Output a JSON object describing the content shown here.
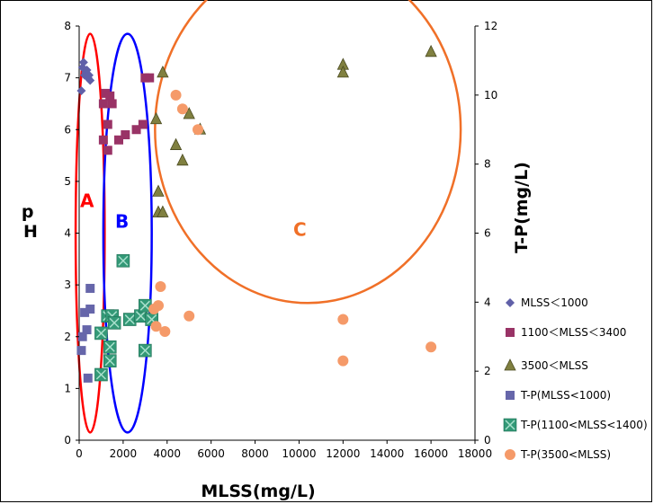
{
  "chart_data": {
    "type": "scatter",
    "xlabel": "MLSS(mg/L)",
    "ylabel": "pH",
    "y2label": "T-P(mg/L)",
    "xlim": [
      0,
      18000
    ],
    "ylim": [
      0,
      8
    ],
    "y2lim": [
      0,
      12
    ],
    "x_ticks": [
      "0",
      "2000",
      "4000",
      "6000",
      "8000",
      "10000",
      "12000",
      "14000",
      "16000",
      "18000"
    ],
    "y_ticks": [
      "0",
      "1",
      "2",
      "3",
      "4",
      "5",
      "6",
      "7",
      "8"
    ],
    "y2_ticks": [
      "0",
      "2",
      "4",
      "6",
      "8",
      "10",
      "12"
    ],
    "grid": false,
    "legend_position": "right",
    "series": [
      {
        "name": "MLSS＜1000",
        "axis": "left",
        "marker": "diamond",
        "color": "#6060A8",
        "points": [
          [
            100,
            6.75
          ],
          [
            150,
            7.2
          ],
          [
            200,
            7.3
          ],
          [
            250,
            7.05
          ],
          [
            300,
            7.1
          ],
          [
            350,
            7.15
          ],
          [
            400,
            7.0
          ],
          [
            450,
            7.05
          ],
          [
            500,
            6.95
          ]
        ]
      },
      {
        "name": "1100＜MLSS＜3400",
        "axis": "left",
        "marker": "square",
        "color": "#993366",
        "points": [
          [
            1100,
            6.5
          ],
          [
            1100,
            5.8
          ],
          [
            1200,
            6.7
          ],
          [
            1300,
            6.1
          ],
          [
            1300,
            5.6
          ],
          [
            1400,
            6.65
          ],
          [
            1500,
            6.5
          ],
          [
            1800,
            5.8
          ],
          [
            2100,
            5.9
          ],
          [
            2600,
            6.0
          ],
          [
            2900,
            6.1
          ],
          [
            3000,
            7.0
          ],
          [
            3200,
            7.0
          ]
        ]
      },
      {
        "name": "3500＜MLSS",
        "axis": "left",
        "marker": "triangle",
        "color": "#808040",
        "points": [
          [
            3500,
            6.2
          ],
          [
            3600,
            4.8
          ],
          [
            3600,
            4.4
          ],
          [
            3800,
            7.1
          ],
          [
            3800,
            4.4
          ],
          [
            4400,
            5.7
          ],
          [
            4700,
            5.4
          ],
          [
            5000,
            6.3
          ],
          [
            5500,
            6.0
          ],
          [
            12000,
            7.25
          ],
          [
            12000,
            7.1
          ],
          [
            16000,
            7.5
          ]
        ]
      },
      {
        "name": "T-P(MLSS<1000)",
        "axis": "right",
        "marker": "square",
        "color": "#6666AA",
        "points": [
          [
            100,
            2.6
          ],
          [
            150,
            3.0
          ],
          [
            250,
            3.7
          ],
          [
            350,
            3.2
          ],
          [
            400,
            1.8
          ],
          [
            500,
            3.8
          ],
          [
            500,
            4.4
          ]
        ]
      },
      {
        "name": "T-P(1100<MLSS<1400)",
        "axis": "right",
        "marker": "cross-square",
        "color": "#339977",
        "points": [
          [
            1000,
            3.1
          ],
          [
            1000,
            1.9
          ],
          [
            1300,
            3.6
          ],
          [
            1400,
            2.7
          ],
          [
            1400,
            2.3
          ],
          [
            1500,
            3.6
          ],
          [
            1600,
            3.4
          ],
          [
            2000,
            5.2
          ],
          [
            2300,
            3.5
          ],
          [
            2800,
            3.6
          ],
          [
            3000,
            3.9
          ],
          [
            3000,
            2.6
          ],
          [
            3300,
            3.5
          ]
        ]
      },
      {
        "name": "T-P(3500<MLSS)",
        "axis": "right",
        "marker": "circle",
        "color": "#F59A69",
        "points": [
          [
            3400,
            3.8
          ],
          [
            3500,
            3.3
          ],
          [
            3600,
            3.9
          ],
          [
            3700,
            4.45
          ],
          [
            3900,
            3.15
          ],
          [
            4400,
            10.0
          ],
          [
            4700,
            9.6
          ],
          [
            5000,
            3.6
          ],
          [
            5400,
            9.0
          ],
          [
            12000,
            3.5
          ],
          [
            12000,
            2.3
          ],
          [
            16000,
            2.7
          ]
        ]
      }
    ],
    "annotations": [
      {
        "text": "A",
        "color": "#FF0000",
        "ellipse": {
          "cx": 500,
          "cy": 4.0,
          "rx": 660,
          "ry": 3.85
        }
      },
      {
        "text": "B",
        "color": "#0000FF",
        "ellipse": {
          "cx": 2200,
          "cy": 4.0,
          "rx": 1100,
          "ry": 3.85
        }
      },
      {
        "text": "C",
        "color": "#F07028",
        "ellipse": {
          "cx": 10400,
          "cy": 6.0,
          "rx": 6950,
          "ry": 3.35
        }
      }
    ]
  }
}
